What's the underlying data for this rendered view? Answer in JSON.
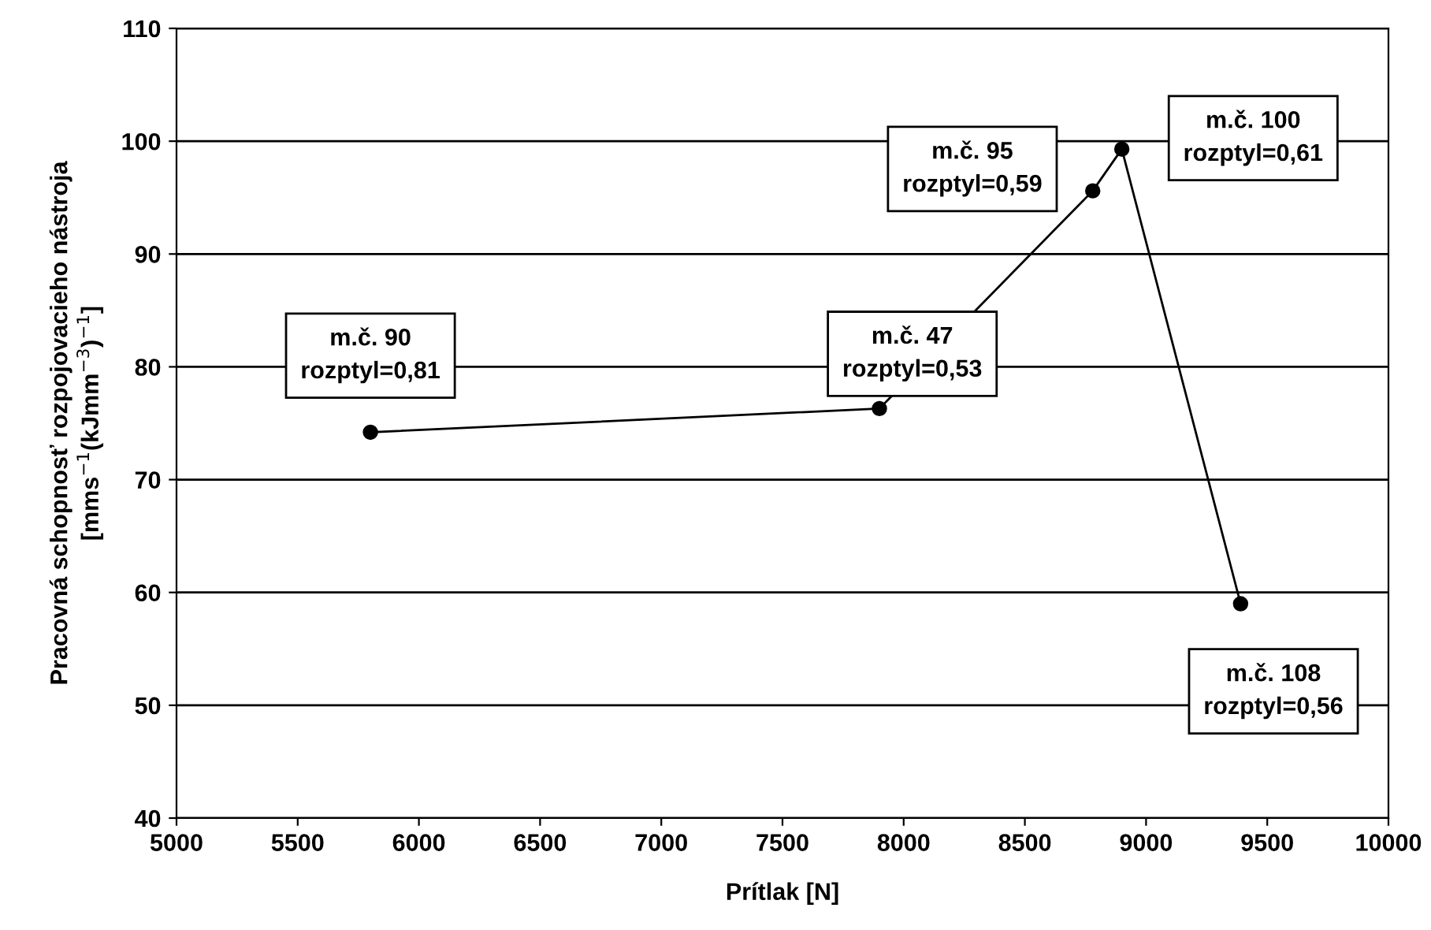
{
  "chart_data": {
    "type": "line",
    "xlabel": "Prítlak [N]",
    "ylabel": "Pracovná schopnosť rozpojovacieho nástroja\n[mms$^{−1}$(kJmm$^{−3}$)$^{−1}$]",
    "x": [
      5800,
      7900,
      8780,
      8900,
      9390
    ],
    "series": [
      {
        "color": "#000000",
        "values": [
          74.2,
          76.3,
          95.6,
          99.3,
          59.0
        ]
      }
    ],
    "xlim": [
      5000,
      10000
    ],
    "xticks": [
      5000,
      5500,
      6000,
      6500,
      7000,
      7500,
      8000,
      8500,
      9000,
      9500,
      10000
    ],
    "ylim": [
      40,
      110
    ],
    "yticks": [
      40,
      50,
      60,
      70,
      80,
      90,
      100,
      110
    ],
    "grid": "y",
    "marker": "circle",
    "line_style": "solid",
    "annotations": [
      {
        "text": "m.č. 90\nrozptyl=0,81",
        "x": 5800,
        "y": 74.2
      },
      {
        "text": "m.č. 47\nrozptyl=0,53",
        "x": 7900,
        "y": 76.3
      },
      {
        "text": "m.č. 95\nrozptyl=0,59",
        "x": 8780,
        "y": 95.6
      },
      {
        "text": "m.č. 100\nrozptyl=0,61",
        "x": 8900,
        "y": 99.3
      },
      {
        "text": "m.č. 108\nrozptyl=0,56",
        "x": 9390,
        "y": 59.0
      }
    ]
  }
}
